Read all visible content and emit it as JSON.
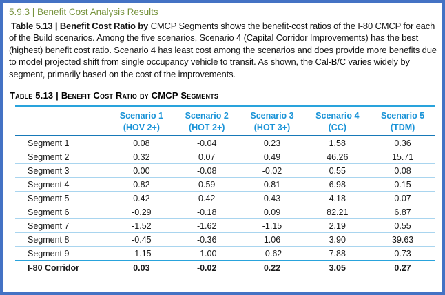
{
  "page": {
    "section_heading": "5.9.3 | Benefit Cost Analysis Results",
    "paragraph": {
      "bold_lead": "Table 5.13 | Benefit Cost Ratio by",
      "rest": " CMCP Segments shows the benefit-cost ratios of the I-80 CMCP for each of the Build scenarios. Among the five scenarios, Scenario 4 (Capital Corridor Improvements) has the best (highest) benefit cost ratio. Scenario 4 has least cost among the scenarios and does provide more benefits due to model projected shift from single occupancy vehicle to transit. As shown, the Cal-B/C varies widely by segment, primarily based on the cost of the improvements."
    },
    "table_title": "Table 5.13 | Benefit Cost Ratio by CMCP Segments"
  },
  "table": {
    "columns": [
      {
        "scenario": "Scenario 1",
        "mode": "(HOV 2+)"
      },
      {
        "scenario": "Scenario 2",
        "mode": "(HOT 2+)"
      },
      {
        "scenario": "Scenario 3",
        "mode": "(HOT 3+)"
      },
      {
        "scenario": "Scenario 4",
        "mode": "(CC)"
      },
      {
        "scenario": "Scenario 5",
        "mode": "(TDM)"
      }
    ],
    "rows": [
      {
        "label": "Segment 1",
        "values": [
          "0.08",
          "-0.04",
          "0.23",
          "1.58",
          "0.36"
        ]
      },
      {
        "label": "Segment 2",
        "values": [
          "0.32",
          "0.07",
          "0.49",
          "46.26",
          "15.71"
        ]
      },
      {
        "label": "Segment 3",
        "values": [
          "0.00",
          "-0.08",
          "-0.02",
          "0.55",
          "0.08"
        ]
      },
      {
        "label": "Segment 4",
        "values": [
          "0.82",
          "0.59",
          "0.81",
          "6.98",
          "0.15"
        ]
      },
      {
        "label": "Segment 5",
        "values": [
          "0.42",
          "0.42",
          "0.43",
          "4.18",
          "0.07"
        ]
      },
      {
        "label": "Segment 6",
        "values": [
          "-0.29",
          "-0.18",
          "0.09",
          "82.21",
          "6.87"
        ]
      },
      {
        "label": "Segment 7",
        "values": [
          "-1.52",
          "-1.62",
          "-1.15",
          "2.19",
          "0.55"
        ]
      },
      {
        "label": "Segment 8",
        "values": [
          "-0.45",
          "-0.36",
          "1.06",
          "3.90",
          "39.63"
        ]
      },
      {
        "label": "Segment 9",
        "values": [
          "-1.15",
          "-1.00",
          "-0.62",
          "7.88",
          "0.73"
        ]
      }
    ],
    "total_row": {
      "label": "I-80 Corridor",
      "values": [
        "0.03",
        "-0.02",
        "0.22",
        "3.05",
        "0.27"
      ]
    }
  },
  "colors": {
    "page_border_blue": "#4472C4",
    "section_heading_olive": "#76923C",
    "table_header_blue": "#1993D7",
    "thick_rule_cyan": "#29A3DC",
    "header_rule_blue": "#1779B8",
    "row_separator_light_blue": "#A9D5EF"
  }
}
